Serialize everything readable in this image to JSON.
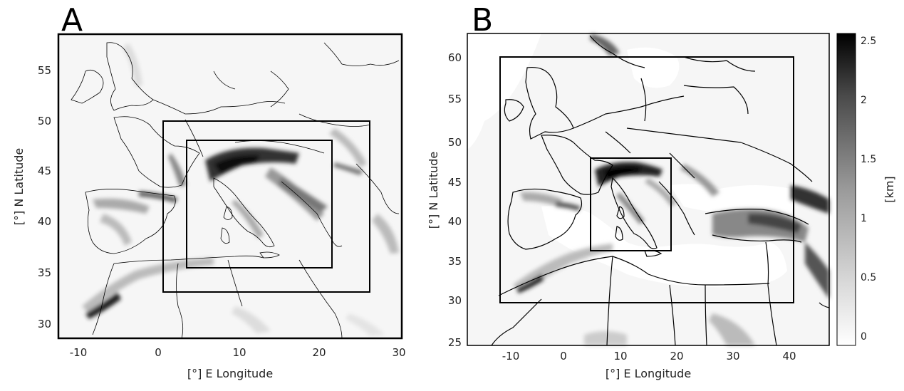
{
  "panels": [
    {
      "letter": "A",
      "xlabel": "[°] E Longitude",
      "ylabel": "[°] N Latitude",
      "xticks": [
        "-10",
        "0",
        "10",
        "20",
        "30"
      ],
      "yticks": [
        "30",
        "35",
        "40",
        "45",
        "50",
        "55"
      ]
    },
    {
      "letter": "B",
      "xlabel": "[°] E Longitude",
      "ylabel": "[°] N Latitude",
      "xticks": [
        "-10",
        "0",
        "10",
        "20",
        "30",
        "40"
      ],
      "yticks": [
        "25",
        "30",
        "35",
        "40",
        "45",
        "50",
        "55",
        "60"
      ]
    }
  ],
  "colorbar": {
    "label": "[km]",
    "ticks": [
      "2.5",
      "2",
      "1.5",
      "1",
      "0.5",
      "0"
    ]
  },
  "colors": {
    "land": "#f6f6f6",
    "terrain_dark": "#1a1a1a",
    "frame": "#000000"
  }
}
